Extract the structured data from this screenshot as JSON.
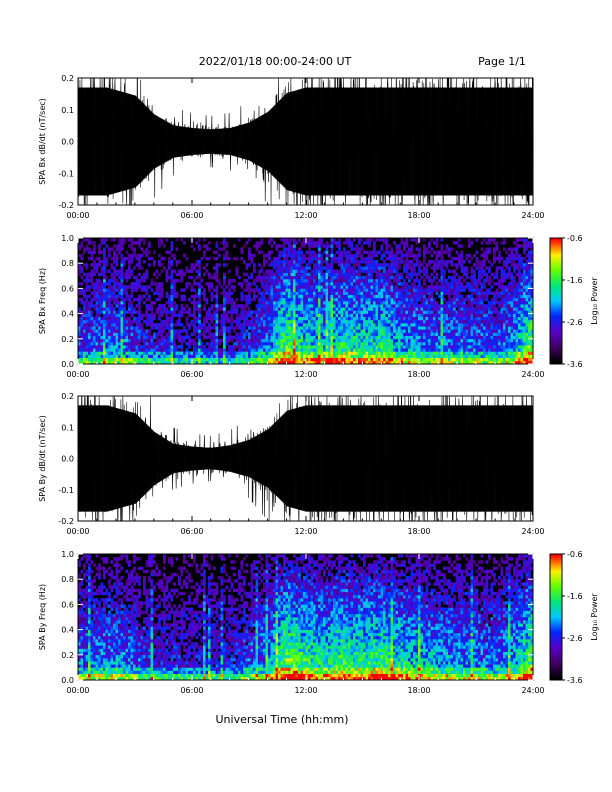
{
  "header": {
    "title": "2022/01/18  00:00-24:00 UT",
    "page": "Page 1/1"
  },
  "chart_data": [
    {
      "type": "line",
      "ylabel": "SPA Bx dB/dt (nT/sec)",
      "xlim": [
        0,
        24
      ],
      "ylim": [
        -0.2,
        0.2
      ],
      "xticks": [
        "00:00",
        "06:00",
        "12:00",
        "18:00",
        "24:00"
      ],
      "yticks": [
        "-0.2",
        "-0.1",
        "0.0",
        "0.1",
        "0.2"
      ],
      "amplitude_envelope": {
        "hours": [
          0,
          1.5,
          3,
          4,
          5,
          6,
          7,
          8,
          9,
          10,
          11,
          12,
          15,
          18,
          21,
          23,
          24
        ],
        "amp": [
          0.2,
          0.2,
          0.17,
          0.1,
          0.06,
          0.05,
          0.045,
          0.05,
          0.07,
          0.11,
          0.18,
          0.2,
          0.2,
          0.2,
          0.2,
          0.2,
          0.2
        ]
      },
      "color": "#000000"
    },
    {
      "type": "heatmap",
      "ylabel": "SPA Bx Freq (Hz)",
      "xlim": [
        0,
        24
      ],
      "ylim": [
        0,
        1.0
      ],
      "xticks": [
        "00:00",
        "06:00",
        "12:00",
        "18:00",
        "24:00"
      ],
      "yticks": [
        "0.0",
        "0.2",
        "0.4",
        "0.6",
        "0.8",
        "1.0"
      ],
      "colorbar": {
        "label": "Log₁₀ Power",
        "ticks": [
          "-0.6",
          "-1.6",
          "-2.6",
          "-3.6"
        ],
        "range": [
          -3.6,
          -0.6
        ]
      },
      "activity_hours": [
        0,
        2,
        4,
        6,
        8,
        9,
        10,
        11,
        12,
        13,
        14,
        15,
        16,
        17,
        18,
        19,
        20,
        21,
        22,
        23,
        24
      ],
      "activity_level": [
        0.45,
        0.5,
        0.35,
        0.3,
        0.3,
        0.4,
        0.5,
        0.85,
        0.7,
        0.65,
        0.75,
        0.7,
        0.75,
        0.6,
        0.55,
        0.5,
        0.5,
        0.5,
        0.45,
        0.6,
        0.9
      ]
    },
    {
      "type": "line",
      "ylabel": "SPA By dB/dt (nT/sec)",
      "xlim": [
        0,
        24
      ],
      "ylim": [
        -0.2,
        0.2
      ],
      "xticks": [
        "00:00",
        "06:00",
        "12:00",
        "18:00",
        "24:00"
      ],
      "yticks": [
        "-0.2",
        "-0.1",
        "0.0",
        "0.1",
        "0.2"
      ],
      "amplitude_envelope": {
        "hours": [
          0,
          1.5,
          3,
          4,
          5,
          6,
          7,
          8,
          9,
          10,
          11,
          12,
          15,
          18,
          21,
          23,
          24
        ],
        "amp": [
          0.2,
          0.2,
          0.17,
          0.1,
          0.055,
          0.045,
          0.04,
          0.05,
          0.07,
          0.11,
          0.18,
          0.2,
          0.2,
          0.2,
          0.2,
          0.2,
          0.2
        ]
      },
      "color": "#000000"
    },
    {
      "type": "heatmap",
      "ylabel": "SPA By Freq (Hz)",
      "xlim": [
        0,
        24
      ],
      "ylim": [
        0,
        1.0
      ],
      "xticks": [
        "00:00",
        "06:00",
        "12:00",
        "18:00",
        "24:00"
      ],
      "yticks": [
        "0.0",
        "0.2",
        "0.4",
        "0.6",
        "0.8",
        "1.0"
      ],
      "colorbar": {
        "label": "Log₁₀ Power",
        "ticks": [
          "-0.6",
          "-1.6",
          "-2.6",
          "-3.6"
        ],
        "range": [
          -3.6,
          -0.6
        ]
      },
      "activity_hours": [
        0,
        2,
        4,
        6,
        8,
        9,
        10,
        11,
        12,
        13,
        14,
        15,
        16,
        17,
        18,
        19,
        20,
        21,
        22,
        23,
        24
      ],
      "activity_level": [
        0.5,
        0.55,
        0.4,
        0.35,
        0.35,
        0.45,
        0.55,
        0.9,
        0.8,
        0.7,
        0.8,
        0.75,
        0.8,
        0.7,
        0.65,
        0.6,
        0.55,
        0.55,
        0.5,
        0.6,
        0.9
      ]
    }
  ],
  "xlabel": "Universal Time (hh:mm)"
}
